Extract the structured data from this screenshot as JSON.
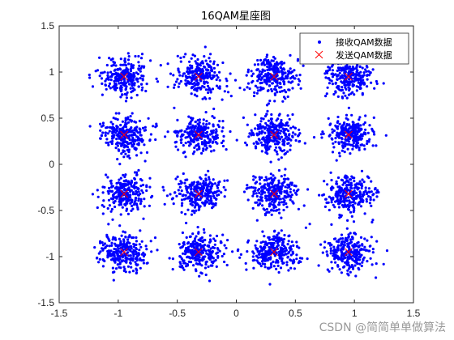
{
  "chart_data": {
    "type": "scatter",
    "title": "16QAM星座图",
    "xlim": [
      -1.5,
      1.5
    ],
    "ylim": [
      -1.5,
      1.5
    ],
    "xticks": [
      -1.5,
      -1,
      -0.5,
      0,
      0.5,
      1,
      1.5
    ],
    "yticks": [
      -1.5,
      -1,
      -0.5,
      0,
      0.5,
      1,
      1.5
    ],
    "xtick_labels": [
      "-1.5",
      "-1",
      "-0.5",
      "0",
      "0.5",
      "1",
      "1.5"
    ],
    "ytick_labels": [
      "-1.5",
      "-1",
      "-0.5",
      "0",
      "0.5",
      "1",
      "1.5"
    ],
    "grid": false,
    "legend_position": "top-right",
    "series": [
      {
        "name": "接收QAM数据",
        "marker": "dot",
        "color": "#0000ff",
        "description_values": "noisy received samples clustered around each ideal constellation point",
        "cluster_std_approx": 0.1
      },
      {
        "name": "发送QAM数据",
        "marker": "x",
        "color": "#ff0000",
        "points": [
          [
            -0.95,
            0.95
          ],
          [
            -0.32,
            0.95
          ],
          [
            0.32,
            0.95
          ],
          [
            0.95,
            0.95
          ],
          [
            -0.95,
            0.32
          ],
          [
            -0.32,
            0.32
          ],
          [
            0.32,
            0.32
          ],
          [
            0.95,
            0.32
          ],
          [
            -0.95,
            -0.32
          ],
          [
            -0.32,
            -0.32
          ],
          [
            0.32,
            -0.32
          ],
          [
            0.95,
            -0.32
          ],
          [
            -0.95,
            -0.95
          ],
          [
            -0.32,
            -0.95
          ],
          [
            0.32,
            -0.95
          ],
          [
            0.95,
            -0.95
          ]
        ]
      }
    ]
  },
  "watermark": "CSDN @简简单单做算法"
}
